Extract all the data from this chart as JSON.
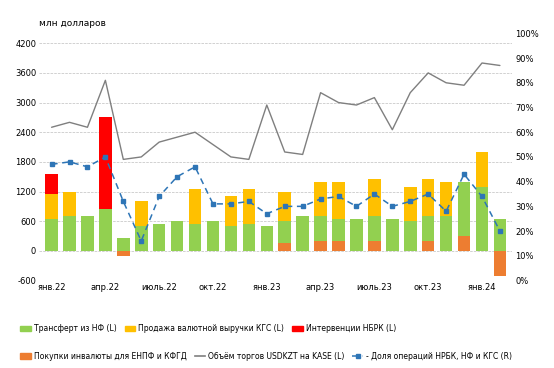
{
  "title_left": "млн долларов",
  "xlabels": [
    "янв.22",
    "апр.22",
    "июль.22",
    "окт.22",
    "янв.23",
    "апр.23",
    "июль.23",
    "окт.23",
    "янв.24"
  ],
  "xtick_indices": [
    0,
    3,
    6,
    9,
    12,
    15,
    18,
    21,
    24
  ],
  "n": 26,
  "green_bars": [
    650,
    700,
    700,
    850,
    250,
    500,
    550,
    600,
    550,
    600,
    500,
    550,
    500,
    600,
    700,
    700,
    650,
    650,
    700,
    650,
    600,
    700,
    700,
    1400,
    1300,
    650
  ],
  "yellow_bars": [
    500,
    500,
    0,
    0,
    0,
    500,
    0,
    0,
    700,
    0,
    600,
    700,
    0,
    600,
    0,
    700,
    750,
    0,
    750,
    0,
    700,
    750,
    700,
    0,
    700,
    0
  ],
  "red_bars": [
    400,
    0,
    0,
    1850,
    0,
    0,
    0,
    0,
    0,
    0,
    0,
    0,
    0,
    0,
    0,
    0,
    0,
    0,
    0,
    0,
    0,
    0,
    0,
    0,
    0,
    0
  ],
  "orange_bars": [
    0,
    0,
    0,
    0,
    -100,
    0,
    0,
    0,
    0,
    0,
    0,
    0,
    0,
    150,
    0,
    200,
    200,
    0,
    200,
    0,
    0,
    200,
    0,
    300,
    0,
    -500
  ],
  "grey_line": [
    2500,
    2600,
    2500,
    3450,
    1850,
    1900,
    2200,
    2300,
    2400,
    2150,
    1900,
    1850,
    2950,
    2000,
    1950,
    3200,
    3000,
    2950,
    3100,
    2450,
    3200,
    3600,
    3400,
    3350,
    3800,
    3750
  ],
  "blue_dashed": [
    47,
    48,
    46,
    50,
    32,
    16,
    34,
    42,
    46,
    31,
    31,
    32,
    27,
    30,
    30,
    33,
    34,
    30,
    35,
    30,
    32,
    35,
    28,
    43,
    34,
    20
  ],
  "ylim_left": [
    -600,
    4400
  ],
  "ylim_right": [
    0,
    100
  ],
  "yticks_left": [
    -600,
    0,
    600,
    1200,
    1800,
    2400,
    3000,
    3600,
    4200
  ],
  "yticks_right": [
    0,
    10,
    20,
    30,
    40,
    50,
    60,
    70,
    80,
    90,
    100
  ],
  "color_green": "#92d050",
  "color_yellow": "#ffc000",
  "color_red": "#ff0000",
  "color_orange": "#ed7d31",
  "color_grey": "#7f7f7f",
  "color_blue_dashed": "#2e75b6",
  "bg_color": "#ffffff",
  "grid_color": "#bfbfbf",
  "legend_row1": [
    {
      "label": "Трансферт из НФ (L)",
      "color": "#92d050"
    },
    {
      "label": "Продажа валютной выручки КГС (L)",
      "color": "#ffc000"
    },
    {
      "label": "Интервенции НБРК (L)",
      "color": "#ff0000"
    }
  ],
  "legend_row2": [
    {
      "label": "Покупки инвалюты для ЕНПФ и КФГД",
      "color": "#ed7d31"
    },
    {
      "label": "Объём торгов USDKZT на KASE (L)",
      "color": "#7f7f7f"
    },
    {
      "label": "- Доля операций НРБК, НФ и КГС (R)",
      "color": "#2e75b6"
    }
  ]
}
